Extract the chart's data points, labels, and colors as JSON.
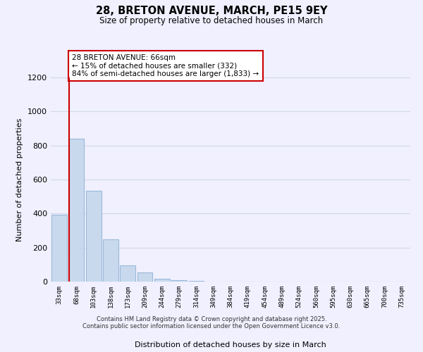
{
  "title": "28, BRETON AVENUE, MARCH, PE15 9EY",
  "subtitle": "Size of property relative to detached houses in March",
  "xlabel": "Distribution of detached houses by size in March",
  "ylabel": "Number of detached properties",
  "bar_labels": [
    "33sqm",
    "68sqm",
    "103sqm",
    "138sqm",
    "173sqm",
    "209sqm",
    "244sqm",
    "279sqm",
    "314sqm",
    "349sqm",
    "384sqm",
    "419sqm",
    "454sqm",
    "489sqm",
    "524sqm",
    "560sqm",
    "595sqm",
    "630sqm",
    "665sqm",
    "700sqm",
    "735sqm"
  ],
  "bar_heights": [
    395,
    840,
    535,
    248,
    97,
    52,
    18,
    8,
    3,
    2,
    0,
    0,
    0,
    0,
    0,
    0,
    0,
    0,
    0,
    0,
    0
  ],
  "bar_color": "#c8d9ee",
  "bar_edge_color": "#9ab8d8",
  "highlight_line_color": "#cc0000",
  "annotation_text": "28 BRETON AVENUE: 66sqm\n← 15% of detached houses are smaller (332)\n84% of semi-detached houses are larger (1,833) →",
  "annotation_box_edge_color": "#cc0000",
  "ylim": [
    0,
    1200
  ],
  "yticks": [
    0,
    200,
    400,
    600,
    800,
    1000,
    1200
  ],
  "grid_color": "#d0d8e8",
  "background_color": "#f0f0ff",
  "footer_line1": "Contains HM Land Registry data © Crown copyright and database right 2025.",
  "footer_line2": "Contains public sector information licensed under the Open Government Licence v3.0."
}
